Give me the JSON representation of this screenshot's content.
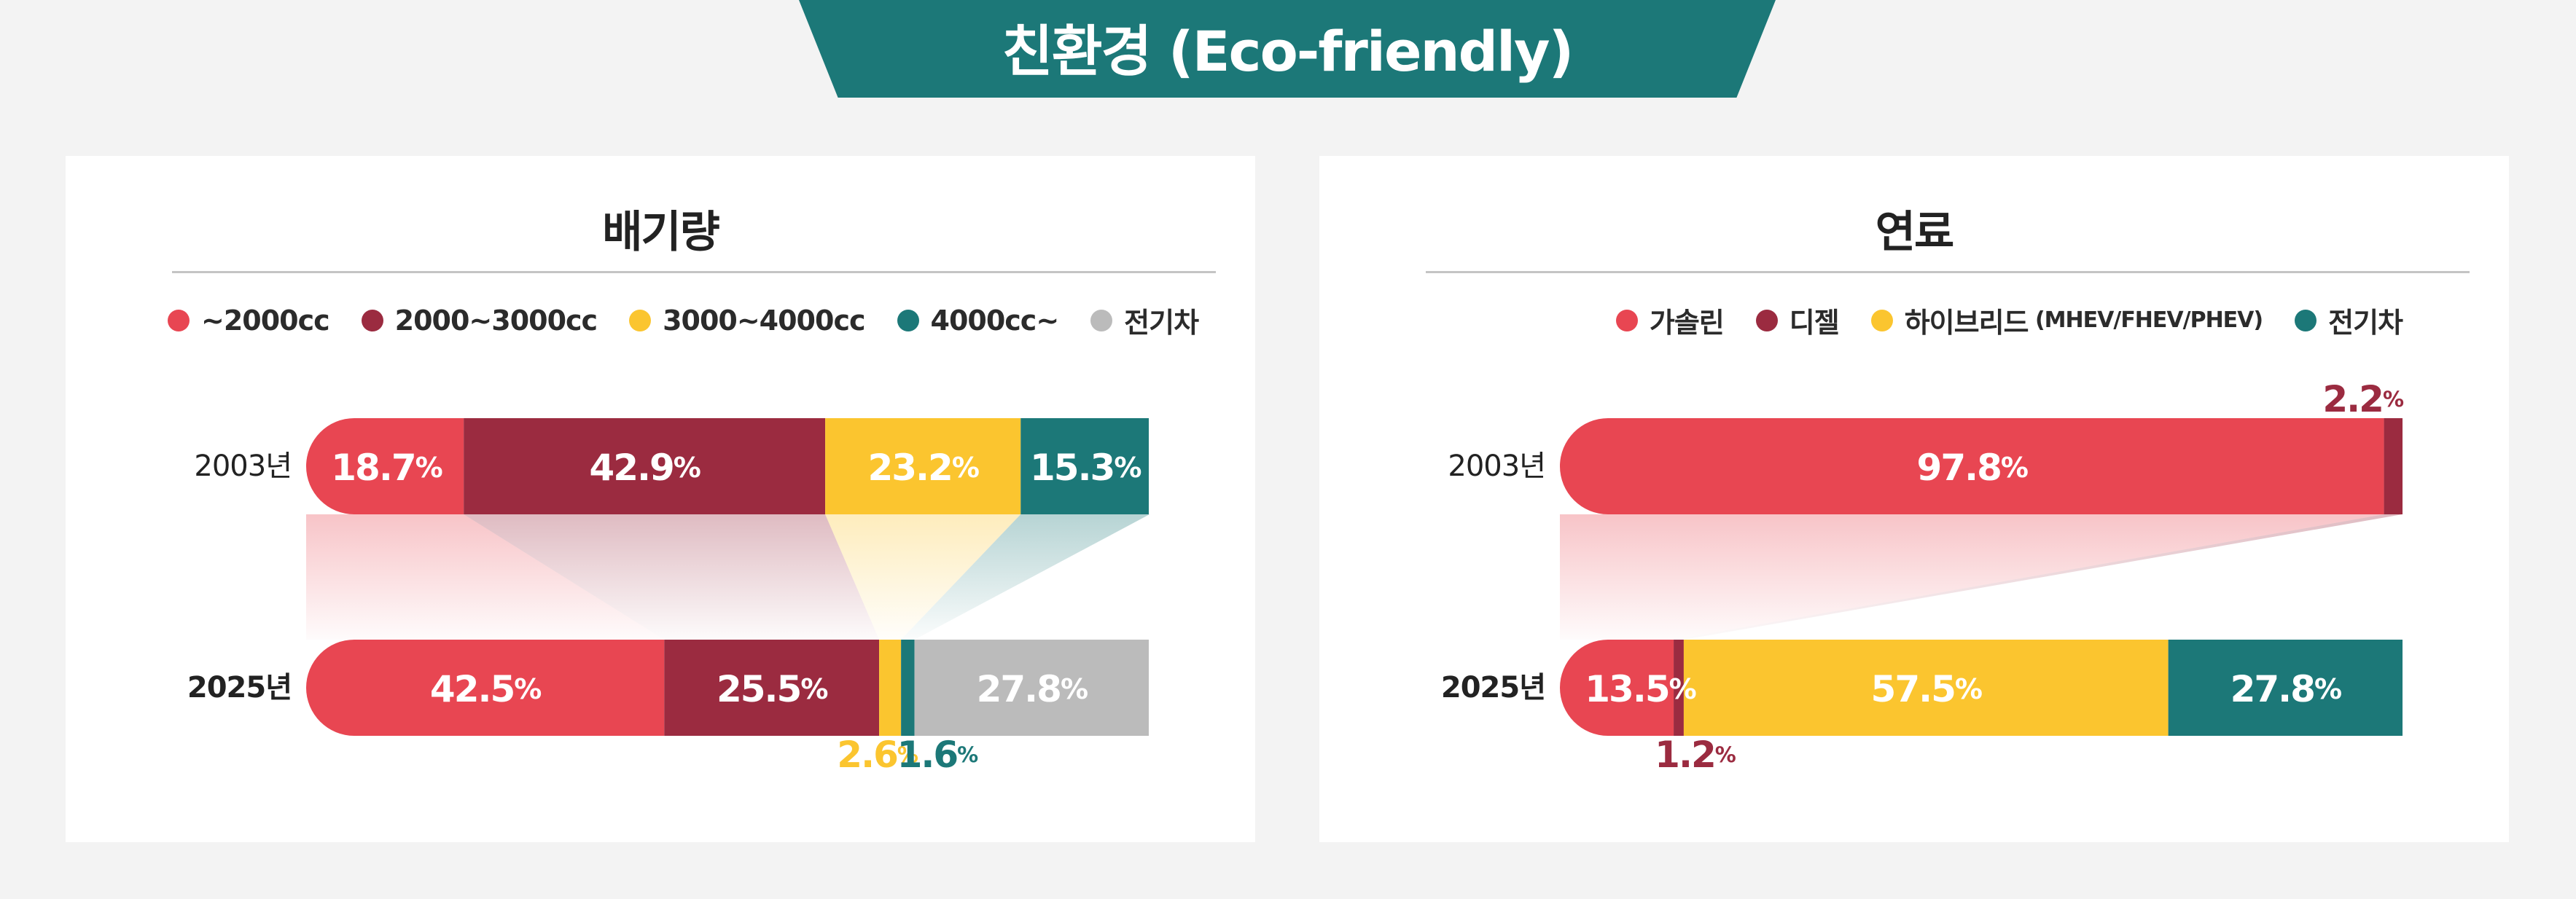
{
  "banner": {
    "title": "친환경 (Eco-friendly)"
  },
  "colors": {
    "red": "#e84652",
    "maroon": "#9b2b40",
    "yellow": "#fbc52f",
    "teal": "#1c7878",
    "gray": "#bbbbbb",
    "banner": "#1c7878"
  },
  "chart_data": [
    {
      "type": "bar",
      "orientation": "horizontal-stacked-100",
      "title": "배기량",
      "categories": [
        "2003년",
        "2025년"
      ],
      "legend": {
        "placement": "top"
      },
      "series": [
        {
          "name": "~2000cc",
          "color": "#e84652",
          "values": [
            18.7,
            42.5
          ],
          "labels": [
            "18.7",
            "42.5"
          ]
        },
        {
          "name": "2000~3000cc",
          "color": "#9b2b40",
          "values": [
            42.9,
            25.5
          ],
          "labels": [
            "42.9",
            "25.5"
          ]
        },
        {
          "name": "3000~4000cc",
          "color": "#fbc52f",
          "values": [
            23.2,
            2.6
          ],
          "labels": [
            "23.2",
            "2.6"
          ]
        },
        {
          "name": "4000cc~",
          "color": "#1c7878",
          "values": [
            15.3,
            1.6
          ],
          "labels": [
            "15.3",
            "1.6"
          ]
        },
        {
          "name": "전기차",
          "color": "#bbbbbb",
          "values": [
            0,
            27.8
          ],
          "labels": [
            "",
            "27.8"
          ]
        }
      ],
      "unit": "%"
    },
    {
      "type": "bar",
      "orientation": "horizontal-stacked-100",
      "title": "연료",
      "categories": [
        "2003년",
        "2025년"
      ],
      "legend": {
        "placement": "top-right"
      },
      "series": [
        {
          "name": "가솔린",
          "color": "#e84652",
          "values": [
            97.8,
            13.5
          ],
          "labels": [
            "97.8",
            "13.5"
          ]
        },
        {
          "name": "디젤",
          "color": "#9b2b40",
          "values": [
            2.2,
            1.2
          ],
          "labels": [
            "2.2",
            "1.2"
          ]
        },
        {
          "name": "하이브리드",
          "name_suffix": "(MHEV/FHEV/PHEV)",
          "color": "#fbc52f",
          "values": [
            0,
            57.5
          ],
          "labels": [
            "",
            "57.5"
          ]
        },
        {
          "name": "전기차",
          "color": "#1c7878",
          "values": [
            0,
            27.8
          ],
          "labels": [
            "",
            "27.8"
          ]
        }
      ],
      "unit": "%"
    }
  ]
}
